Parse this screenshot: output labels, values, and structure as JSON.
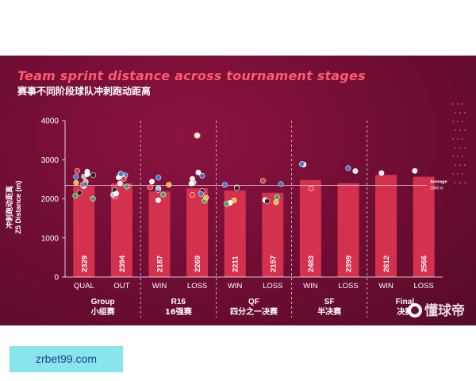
{
  "chart_data": {
    "type": "bar",
    "title": "Team sprint distance across tournament stages",
    "subtitle": "赛事不同阶段球队冲刺跑动距离",
    "ylabel": "冲刺跑动距离\nZ5 Distance (m)",
    "ylim": [
      0,
      4000
    ],
    "yticks": [
      0,
      1000,
      2000,
      3000,
      4000
    ],
    "categories": [
      "QUAL",
      "OUT",
      "WIN",
      "LOSS",
      "WIN",
      "LOSS",
      "WIN",
      "LOSS",
      "WIN",
      "LOSS"
    ],
    "values": [
      2329,
      2394,
      2187,
      2269,
      2211,
      2157,
      2483,
      2399,
      2612,
      2566
    ],
    "groups": [
      {
        "label": "Group",
        "sublabel": "小组赛"
      },
      {
        "label": "R16",
        "sublabel": "16强赛"
      },
      {
        "label": "QF",
        "sublabel": "四分之一决赛"
      },
      {
        "label": "SF",
        "sublabel": "半决赛"
      },
      {
        "label": "Final",
        "sublabel": "决赛"
      }
    ],
    "average": {
      "value": 2345,
      "label": "Average",
      "value_label": "2345 m"
    },
    "grid": false,
    "bar_color": "#d4314f"
  },
  "watermark": "懂球帝",
  "footer_text": "zrbet99.com"
}
